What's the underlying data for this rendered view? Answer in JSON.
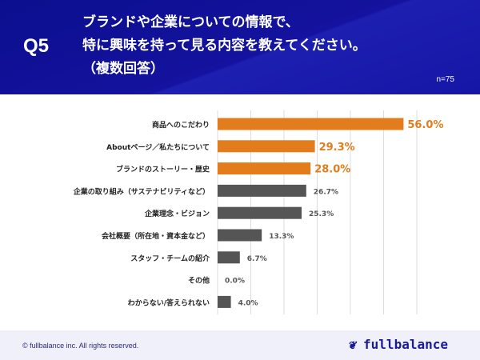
{
  "header": {
    "question": "Q5",
    "title_lines": [
      "ブランドや企業についての情報で、",
      "特に興味を持って見る内容を教えてください。",
      "（複数回答）"
    ],
    "n": "n=75"
  },
  "chart_data": {
    "type": "bar",
    "orientation": "horizontal",
    "categories": [
      "商品へのこだわり",
      "Aboutページ／私たちについて",
      "ブランドのストーリー・歴史",
      "企業の取り組み（サステナビリティなど）",
      "企業理念・ビジョン",
      "会社概要（所在地・資本金など）",
      "スタッフ・チームの紹介",
      "その他",
      "わからない/答えられない"
    ],
    "values": [
      56.0,
      29.3,
      28.0,
      26.7,
      25.3,
      13.3,
      6.7,
      0.0,
      4.0
    ],
    "labels": [
      "56.0%",
      "29.3%",
      "28.0%",
      "26.7%",
      "25.3%",
      "13.3%",
      "6.7%",
      "0.0%",
      "4.0%"
    ],
    "highlight_count": 3,
    "xlim": [
      0,
      60
    ],
    "grid": true,
    "colors": {
      "highlight": "#e27c1c",
      "normal": "#555555",
      "grid": "#dddddd"
    }
  },
  "footer": {
    "copyright": "© fullbalance inc. All rights reserved.",
    "logo": "fullbalance"
  }
}
